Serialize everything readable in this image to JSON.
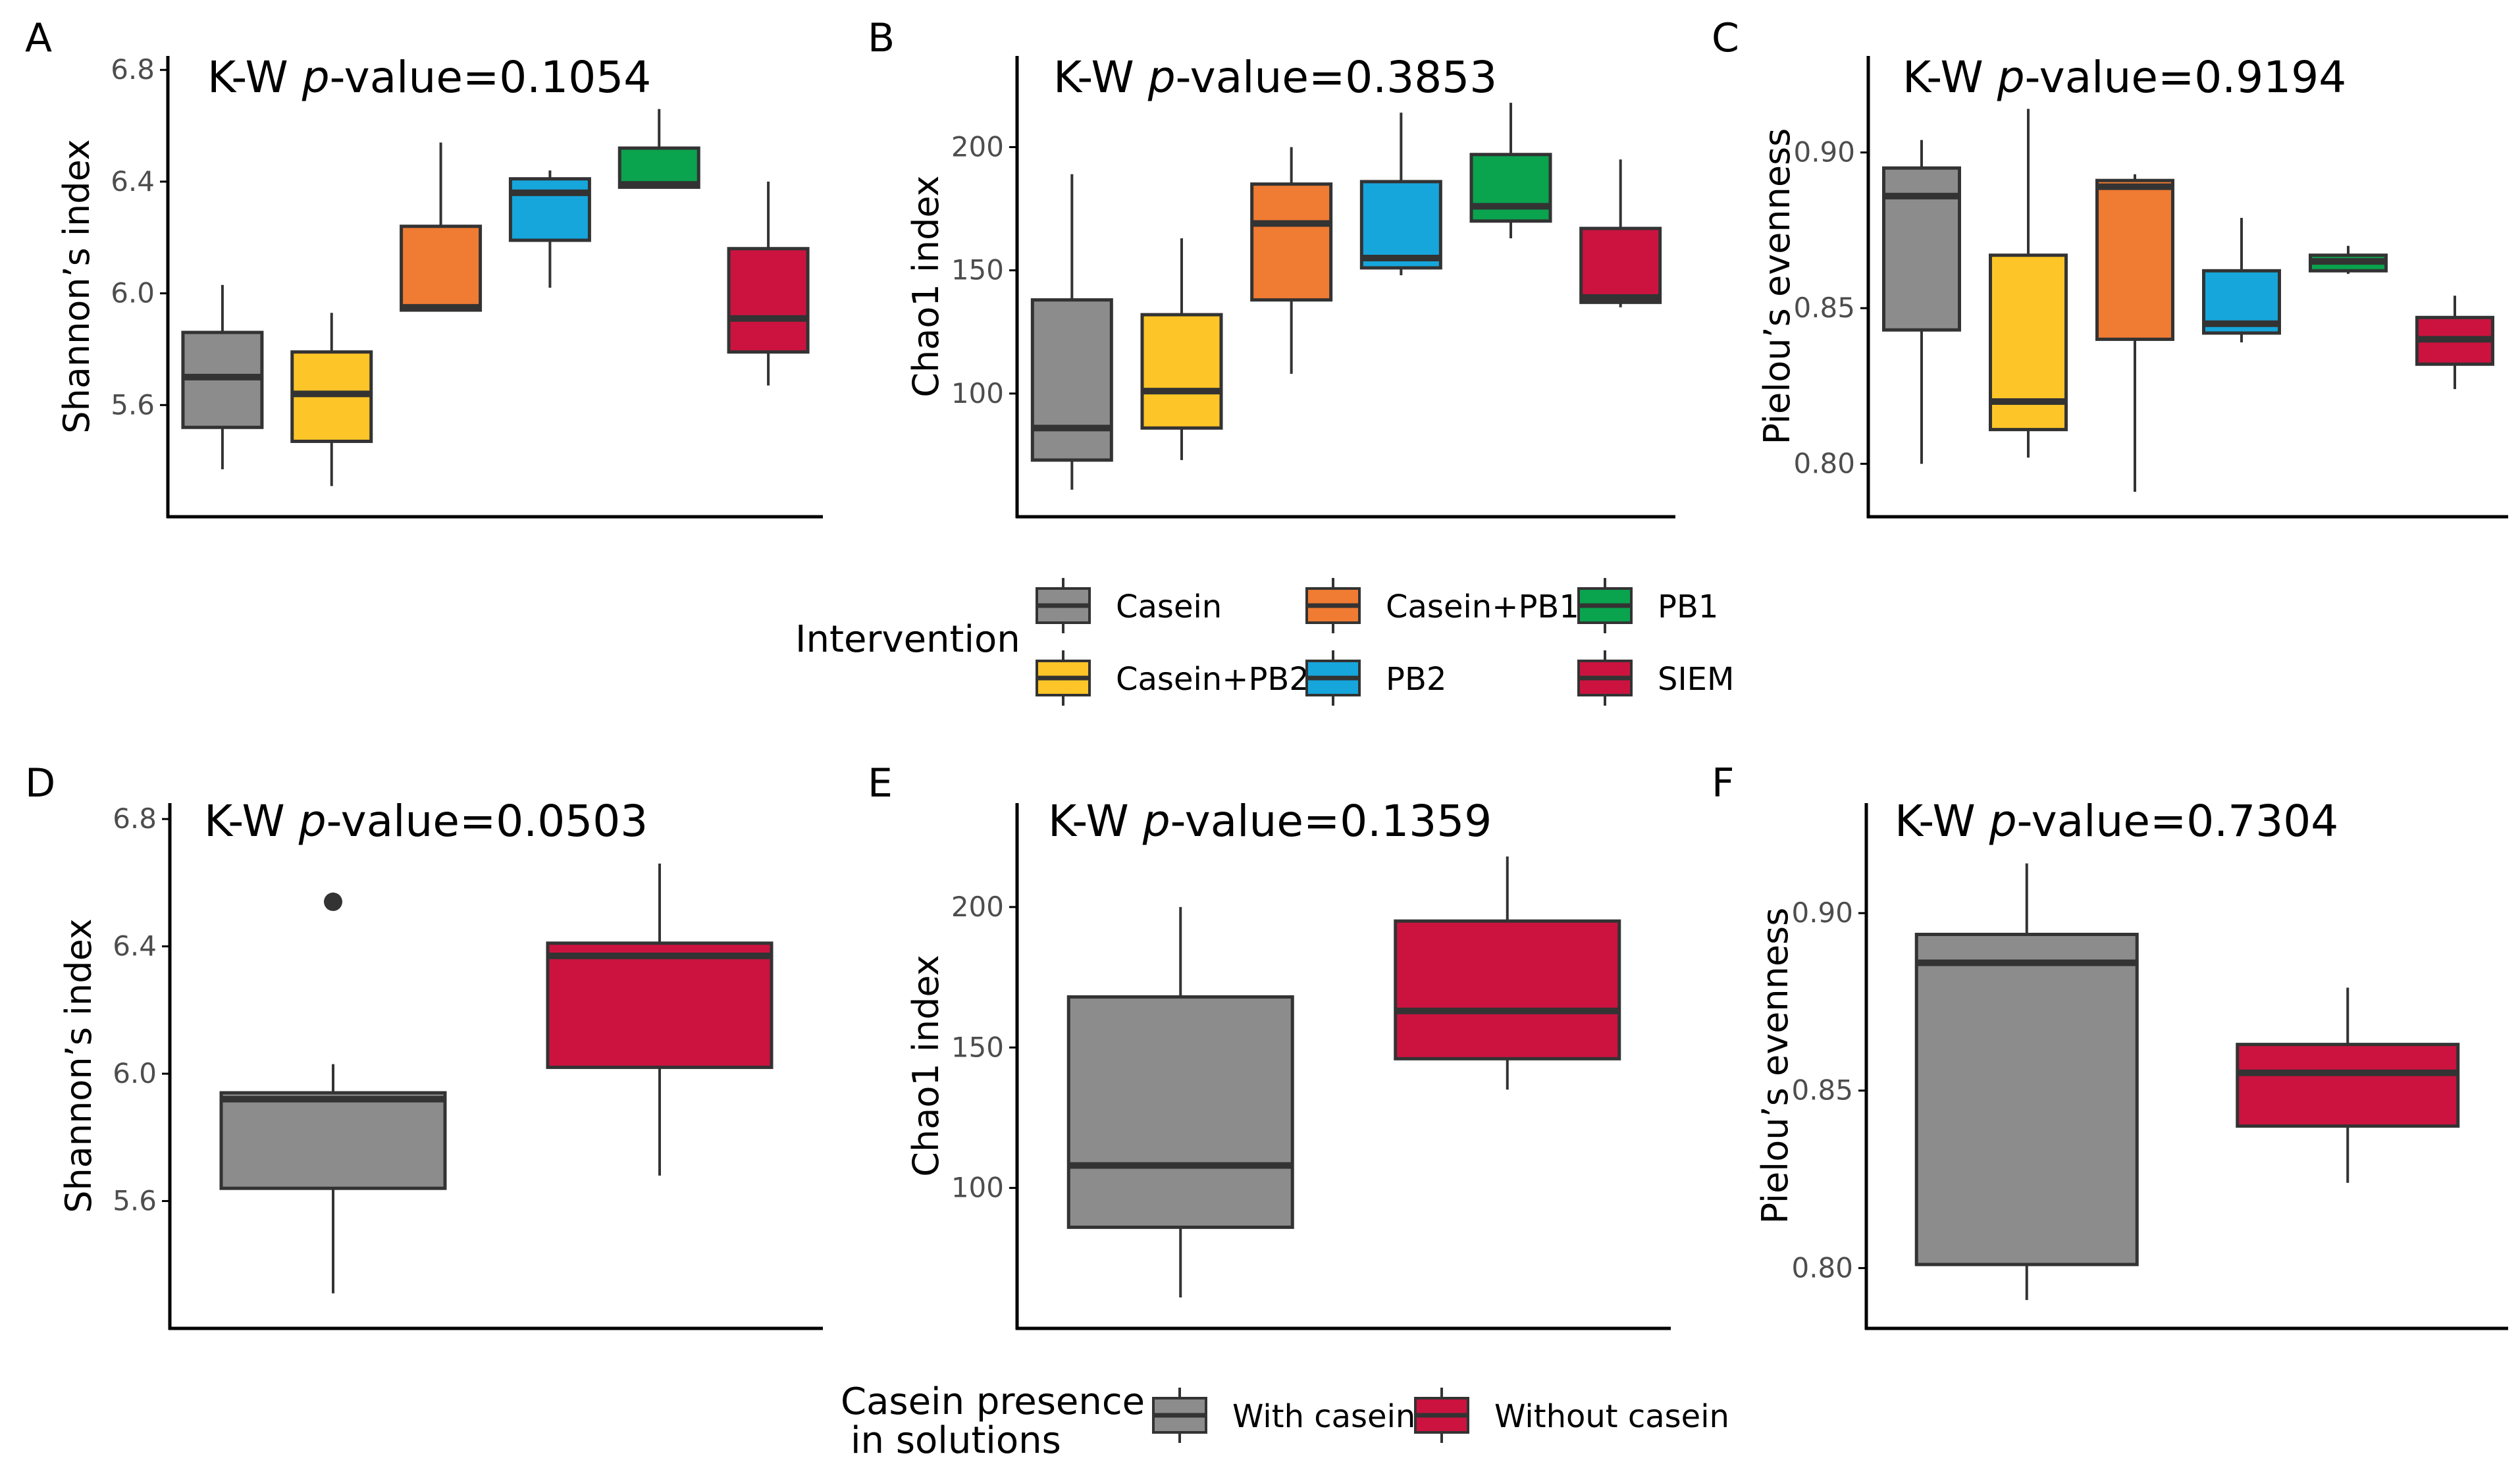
{
  "colors": {
    "Casein": "#8c8c8c",
    "Casein+PB2": "#fdc527",
    "Casein+PB1": "#f07b32",
    "PB2": "#16a6dc",
    "PB1": "#0aa34e",
    "SIEM": "#cc1340",
    "With casein": "#8c8c8c",
    "Without casein": "#cc1340",
    "box_edge": "#333333",
    "axis": "#000000",
    "tick_label": "#4d4d4d"
  },
  "legend_top": {
    "title": "Intervention",
    "items": [
      "Casein",
      "Casein+PB1",
      "PB1",
      "Casein+PB2",
      "PB2",
      "SIEM"
    ]
  },
  "legend_bottom": {
    "title_line1": "Casein presence",
    "title_line2": "in solutions",
    "items": [
      "With casein",
      "Without casein"
    ]
  },
  "chart_data": [
    {
      "panel": "A",
      "type": "box",
      "title_prefix": "K-W ",
      "title_italic": "p",
      "title_suffix": "-value=0.1054",
      "ylabel": "Shannon’s index",
      "xlabel": "",
      "ylim": [
        5.2,
        6.85
      ],
      "yticks": [
        5.6,
        6.0,
        6.4,
        6.8
      ],
      "ytick_labels": [
        "5.6",
        "6.0",
        "6.4",
        "6.8"
      ],
      "boxes": [
        {
          "group": "Casein",
          "min": 5.37,
          "q1": 5.52,
          "median": 5.7,
          "q3": 5.86,
          "max": 6.03
        },
        {
          "group": "Casein+PB2",
          "min": 5.31,
          "q1": 5.47,
          "median": 5.64,
          "q3": 5.79,
          "max": 5.93
        },
        {
          "group": "Casein+PB1",
          "min": 5.94,
          "q1": 5.94,
          "median": 5.95,
          "q3": 6.24,
          "max": 6.54
        },
        {
          "group": "PB2",
          "min": 6.02,
          "q1": 6.19,
          "median": 6.36,
          "q3": 6.41,
          "max": 6.44
        },
        {
          "group": "PB1",
          "min": 6.38,
          "q1": 6.38,
          "median": 6.39,
          "q3": 6.52,
          "max": 6.66
        },
        {
          "group": "SIEM",
          "min": 5.67,
          "q1": 5.79,
          "median": 5.91,
          "q3": 6.16,
          "max": 6.4
        }
      ],
      "outliers": []
    },
    {
      "panel": "B",
      "type": "box",
      "title_prefix": "K-W ",
      "title_italic": "p",
      "title_suffix": "-value=0.3853",
      "ylabel": "Chao1 index",
      "xlabel": "",
      "ylim": [
        50,
        237
      ],
      "yticks": [
        100,
        150,
        200
      ],
      "ytick_labels": [
        "100",
        "150",
        "200"
      ],
      "boxes": [
        {
          "group": "Casein",
          "min": 61,
          "q1": 73,
          "median": 86,
          "q3": 138,
          "max": 189
        },
        {
          "group": "Casein+PB2",
          "min": 73,
          "q1": 86,
          "median": 101,
          "q3": 132,
          "max": 163
        },
        {
          "group": "Casein+PB1",
          "min": 108,
          "q1": 138,
          "median": 169,
          "q3": 185,
          "max": 200
        },
        {
          "group": "PB2",
          "min": 148,
          "q1": 151,
          "median": 155,
          "q3": 186,
          "max": 214
        },
        {
          "group": "PB1",
          "min": 163,
          "q1": 170,
          "median": 176,
          "q3": 197,
          "max": 218
        },
        {
          "group": "SIEM",
          "min": 135,
          "q1": 137,
          "median": 139,
          "q3": 167,
          "max": 195
        }
      ],
      "outliers": []
    },
    {
      "panel": "C",
      "type": "box",
      "title_prefix": "K-W ",
      "title_italic": "p",
      "title_suffix": "-value=0.9194",
      "ylabel": "Pielou’s evenness",
      "xlabel": "",
      "ylim": [
        0.783,
        0.931
      ],
      "yticks": [
        0.8,
        0.85,
        0.9
      ],
      "ytick_labels": [
        "0.80",
        "0.85",
        "0.90"
      ],
      "boxes": [
        {
          "group": "Casein",
          "min": 0.8,
          "q1": 0.843,
          "median": 0.886,
          "q3": 0.895,
          "max": 0.904
        },
        {
          "group": "Casein+PB2",
          "min": 0.802,
          "q1": 0.811,
          "median": 0.82,
          "q3": 0.867,
          "max": 0.914
        },
        {
          "group": "Casein+PB1",
          "min": 0.791,
          "q1": 0.84,
          "median": 0.889,
          "q3": 0.891,
          "max": 0.893
        },
        {
          "group": "PB2",
          "min": 0.839,
          "q1": 0.842,
          "median": 0.845,
          "q3": 0.862,
          "max": 0.879
        },
        {
          "group": "PB1",
          "min": 0.861,
          "q1": 0.862,
          "median": 0.865,
          "q3": 0.867,
          "max": 0.87
        },
        {
          "group": "SIEM",
          "min": 0.824,
          "q1": 0.832,
          "median": 0.84,
          "q3": 0.847,
          "max": 0.854
        }
      ],
      "outliers": []
    },
    {
      "panel": "D",
      "type": "box",
      "title_prefix": "K-W ",
      "title_italic": "p",
      "title_suffix": "-value=0.0503",
      "ylabel": "Shannon’s index",
      "xlabel": "",
      "ylim": [
        5.2,
        6.85
      ],
      "yticks": [
        5.6,
        6.0,
        6.4,
        6.8
      ],
      "ytick_labels": [
        "5.6",
        "6.0",
        "6.4",
        "6.8"
      ],
      "boxes": [
        {
          "group": "With casein",
          "min": 5.31,
          "q1": 5.64,
          "median": 5.92,
          "q3": 5.94,
          "max": 6.03
        },
        {
          "group": "Without casein",
          "min": 5.68,
          "q1": 6.02,
          "median": 6.37,
          "q3": 6.41,
          "max": 6.66
        }
      ],
      "outliers": [
        {
          "group": "With casein",
          "value": 6.54
        }
      ]
    },
    {
      "panel": "E",
      "type": "box",
      "title_prefix": "K-W ",
      "title_italic": "p",
      "title_suffix": "-value=0.1359",
      "ylabel": "Chao1 index",
      "xlabel": "",
      "ylim": [
        50,
        237
      ],
      "yticks": [
        100,
        150,
        200
      ],
      "ytick_labels": [
        "100",
        "150",
        "200"
      ],
      "boxes": [
        {
          "group": "With casein",
          "min": 61,
          "q1": 86,
          "median": 108,
          "q3": 168,
          "max": 200
        },
        {
          "group": "Without casein",
          "min": 135,
          "q1": 146,
          "median": 163,
          "q3": 195,
          "max": 218
        }
      ],
      "outliers": []
    },
    {
      "panel": "F",
      "type": "box",
      "title_prefix": "K-W ",
      "title_italic": "p",
      "title_suffix": "-value=0.7304",
      "ylabel": "Pielou’s evenness",
      "xlabel": "",
      "ylim": [
        0.783,
        0.931
      ],
      "yticks": [
        0.8,
        0.85,
        0.9
      ],
      "ytick_labels": [
        "0.80",
        "0.85",
        "0.90"
      ],
      "boxes": [
        {
          "group": "With casein",
          "min": 0.791,
          "q1": 0.801,
          "median": 0.886,
          "q3": 0.894,
          "max": 0.914
        },
        {
          "group": "Without casein",
          "min": 0.824,
          "q1": 0.84,
          "median": 0.855,
          "q3": 0.863,
          "max": 0.879
        }
      ],
      "outliers": []
    }
  ]
}
